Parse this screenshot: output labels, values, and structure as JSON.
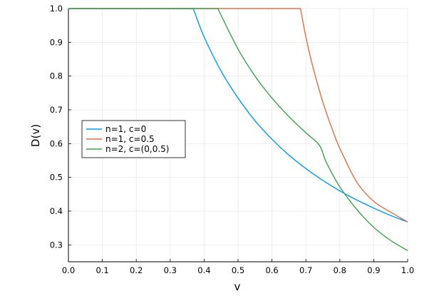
{
  "chart_data": {
    "type": "line",
    "title": "",
    "xlabel": "v",
    "ylabel": "D(v)",
    "xlim": [
      0.0,
      1.0
    ],
    "ylim": [
      0.25,
      1.0
    ],
    "x_ticks": [
      "0.0",
      "0.1",
      "0.2",
      "0.3",
      "0.4",
      "0.5",
      "0.6",
      "0.7",
      "0.8",
      "0.9",
      "1.0"
    ],
    "y_ticks": [
      "0.3",
      "0.4",
      "0.5",
      "0.6",
      "0.7",
      "0.8",
      "0.9",
      "1.0"
    ],
    "grid": true,
    "legend_position": "middle-left",
    "series": [
      {
        "name": "n=1, c=0",
        "color": "#009AFA",
        "x": [
          0.0,
          0.368,
          0.4,
          0.45,
          0.5,
          0.55,
          0.6,
          0.65,
          0.7,
          0.75,
          0.8,
          0.85,
          0.9,
          0.95,
          1.0
        ],
        "y": [
          1.0,
          1.0,
          0.916,
          0.815,
          0.735,
          0.668,
          0.613,
          0.566,
          0.526,
          0.491,
          0.46,
          0.433,
          0.409,
          0.387,
          0.368
        ]
      },
      {
        "name": "n=1, c=0.5",
        "color": "#E26F46",
        "x": [
          0.0,
          0.684,
          0.7,
          0.72,
          0.75,
          0.78,
          0.8,
          0.85,
          0.9,
          0.95,
          1.0
        ],
        "y": [
          1.0,
          1.0,
          0.916,
          0.83,
          0.723,
          0.636,
          0.586,
          0.486,
          0.429,
          0.397,
          0.368
        ]
      },
      {
        "name": "n=2, c=(0,0.5)",
        "color": "#3DA44D",
        "x": [
          0.0,
          0.441,
          0.45,
          0.5,
          0.55,
          0.6,
          0.65,
          0.7,
          0.74,
          0.76,
          0.8,
          0.85,
          0.9,
          0.95,
          1.0
        ],
        "y": [
          1.0,
          1.0,
          0.98,
          0.88,
          0.8,
          0.735,
          0.68,
          0.632,
          0.595,
          0.545,
          0.472,
          0.405,
          0.352,
          0.313,
          0.283
        ]
      }
    ]
  }
}
